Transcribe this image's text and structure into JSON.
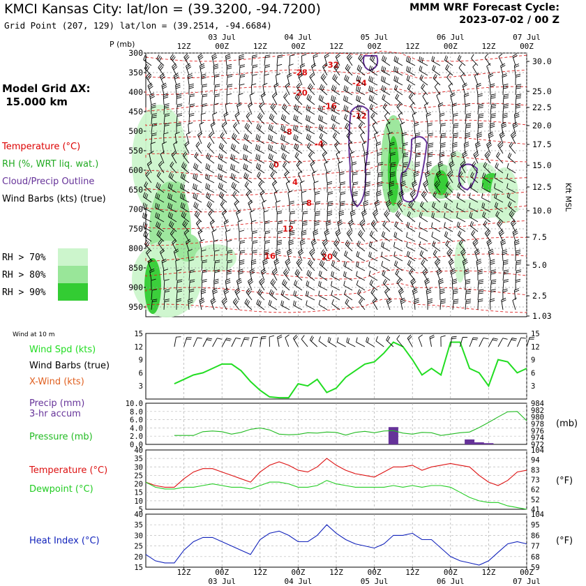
{
  "header": {
    "title": "KMCI Kansas City:  lat/lon = (39.3200, -94.7200)",
    "subtitle": "Grid Point (207, 129) lat/lon = (39.2514, -94.6684)",
    "cycle_line1": "MMM WRF Forecast Cycle:",
    "cycle_line2": "2023-07-02 / 00  Z",
    "model_grid": "Model Grid ΔX:\n 15.000 km"
  },
  "legend": {
    "temperature": "Temperature (°C)",
    "rh": "RH (%, WRT liq. wat.)",
    "cloud": "Cloud/Precip Outline",
    "barbs": "Wind Barbs (kts) (true)",
    "rh70": "RH > 70%",
    "rh80": "RH > 80%",
    "rh90": "RH > 90%",
    "colors": {
      "temperature": "#dd0000",
      "rh": "#22aa22",
      "cloud": "#663399",
      "rh70": "#ccf5cc",
      "rh80": "#99e699",
      "rh90": "#33cc33"
    }
  },
  "time_axis": {
    "top_hours": [
      "12Z",
      "00Z",
      "12Z",
      "00Z",
      "12Z",
      "00Z",
      "12Z",
      "00Z",
      "12Z",
      "00Z"
    ],
    "top_dates": [
      "03 Jul",
      "04 Jul",
      "05 Jul",
      "06 Jul",
      "07 Jul"
    ],
    "bottom_hours": [
      "12Z",
      "00Z",
      "12Z",
      "00Z",
      "12Z",
      "00Z",
      "12Z",
      "00Z",
      "12Z",
      "00Z"
    ],
    "bottom_dates": [
      "03 Jul",
      "04 Jul",
      "05 Jul",
      "06 Jul",
      "07 Jul"
    ]
  },
  "sounding": {
    "p_header": "P (mb)",
    "pressure_levels": [
      "300",
      "350",
      "400",
      "450",
      "500",
      "550",
      "600",
      "650",
      "700",
      "750",
      "800",
      "850",
      "900",
      "950"
    ],
    "kft_ticks": [
      "30.0",
      "25.0",
      "22.5",
      "20.0",
      "17.5",
      "15.0",
      "12.5",
      "10.0",
      "7.5",
      "5.0",
      "2.5",
      "1.03"
    ],
    "kft_label": "Kft MSL",
    "temp_labels": [
      "-32",
      "-28",
      "-24",
      "-20",
      "-16",
      "-12",
      "-8",
      "-4",
      "0",
      "4",
      "8",
      "12",
      "16",
      "20"
    ]
  },
  "panel_wind": {
    "title": "Wind at 10 m",
    "label_spd": "Wind Spd (kts)",
    "label_barbs": "Wind Barbs (true)",
    "label_xwind": "X-Wind (kts)",
    "yticks": [
      "15",
      "12",
      "9",
      "6",
      "3"
    ],
    "colors": {
      "spd": "#22dd22",
      "xwind": "#e06020"
    }
  },
  "panel_precip": {
    "label_precip": "Precip (mm)",
    "label_accum": "3-hr accum",
    "label_pressure": "Pressure (mb)",
    "left_ticks": [
      "10.0",
      "8.0",
      "6.0",
      "4.0",
      "2.0",
      "0.0"
    ],
    "right_ticks": [
      "984",
      "982",
      "980",
      "978",
      "976",
      "974",
      "972"
    ],
    "unit": "(mb)",
    "colors": {
      "precip": "#663399",
      "pressure": "#22bb22"
    }
  },
  "panel_temp": {
    "label_temp": "Temperature (°C)",
    "label_dew": "Dewpoint (°C)",
    "left_ticks": [
      "40",
      "35",
      "30",
      "25",
      "20",
      "15",
      "10",
      "5"
    ],
    "right_ticks": [
      "104",
      "94",
      "83",
      "73",
      "62",
      "52",
      "41"
    ],
    "unit": "(°F)",
    "colors": {
      "temp": "#dd1111",
      "dew": "#22cc22"
    }
  },
  "panel_heat": {
    "label_heat": "Heat Index (°C)",
    "left_ticks": [
      "40",
      "35",
      "30",
      "25",
      "20",
      "15"
    ],
    "right_ticks": [
      "104",
      "95",
      "86",
      "77",
      "68",
      "59"
    ],
    "unit": "(°F)",
    "colors": {
      "heat": "#1122bb"
    }
  },
  "chart_data": [
    {
      "type": "line",
      "name": "10 m wind",
      "x_hours": [
        9,
        12,
        15,
        18,
        21,
        24,
        27,
        30,
        33,
        36,
        39,
        42,
        45,
        48,
        51,
        54,
        57,
        60,
        63,
        66,
        69,
        72,
        75,
        78,
        81,
        84,
        87,
        90,
        93,
        96,
        99,
        102,
        105,
        108,
        111,
        114,
        117,
        120
      ],
      "series": [
        {
          "name": "Wind Spd (kts)",
          "values": [
            3.5,
            4.5,
            5.5,
            6,
            7,
            8,
            8,
            6.5,
            4,
            2,
            0.5,
            0.3,
            0.3,
            3.5,
            3,
            4.5,
            1.5,
            2.5,
            5,
            6.5,
            8,
            8.5,
            10.5,
            13,
            12,
            9,
            5.5,
            7,
            5.5,
            13,
            13,
            7,
            6,
            3,
            9,
            8.5,
            6,
            7
          ]
        }
      ],
      "ylim": [
        0,
        15
      ]
    },
    {
      "type": "bar",
      "name": "3-hr precip",
      "x_hours": [
        78,
        102,
        105,
        108
      ],
      "values": [
        4.2,
        1.2,
        0.5,
        0.3
      ],
      "ylim": [
        0,
        10
      ]
    },
    {
      "type": "line",
      "name": "Pressure (mb)",
      "x_hours": [
        9,
        12,
        15,
        18,
        21,
        24,
        27,
        30,
        33,
        36,
        39,
        42,
        45,
        48,
        51,
        54,
        57,
        60,
        63,
        66,
        69,
        72,
        75,
        78,
        81,
        84,
        87,
        90,
        93,
        96,
        99,
        102,
        105,
        108,
        111,
        114,
        117,
        120
      ],
      "values": [
        974.6,
        974.6,
        974.6,
        975.7,
        975.9,
        975.7,
        975.0,
        975.5,
        976.4,
        976.8,
        976.2,
        975.0,
        974.8,
        974.9,
        975.4,
        975.3,
        975.6,
        975.5,
        974.7,
        975.5,
        975.8,
        975.4,
        975.9,
        976.0,
        975.3,
        975.0,
        975.5,
        975.4,
        974.6,
        975.0,
        975.4,
        975.6,
        976.9,
        978.4,
        980.0,
        981.5,
        981.6,
        978.9
      ],
      "ylim": [
        972,
        984
      ]
    },
    {
      "type": "line",
      "name": "Temperature / Dewpoint",
      "x_hours": [
        0,
        3,
        6,
        9,
        12,
        15,
        18,
        21,
        24,
        27,
        30,
        33,
        36,
        39,
        42,
        45,
        48,
        51,
        54,
        57,
        60,
        63,
        66,
        69,
        72,
        75,
        78,
        81,
        84,
        87,
        90,
        93,
        96,
        99,
        102,
        105,
        108,
        111,
        114,
        117,
        120
      ],
      "series": [
        {
          "name": "Temperature (°C)",
          "values": [
            21,
            19,
            18,
            18,
            23,
            27,
            29,
            29,
            27,
            25,
            23,
            21,
            27,
            31,
            33,
            31,
            28,
            27,
            30,
            35,
            31,
            28,
            26,
            25,
            24,
            27,
            30,
            30,
            31,
            28,
            30,
            31,
            32,
            31,
            30,
            25,
            21,
            19,
            22,
            27,
            28
          ]
        },
        {
          "name": "Dewpoint (°C)",
          "values": [
            21,
            18,
            17,
            17,
            18,
            18,
            19,
            20,
            19,
            18,
            18,
            17,
            19,
            21,
            21,
            20,
            18,
            18,
            19,
            22,
            20,
            19,
            18,
            18,
            18,
            18,
            19,
            18,
            19,
            18,
            19,
            19,
            18,
            15,
            12,
            10,
            9,
            9,
            7,
            6,
            5
          ]
        }
      ],
      "ylim": [
        5,
        40
      ]
    },
    {
      "type": "line",
      "name": "Heat Index (°C)",
      "x_hours": [
        0,
        3,
        6,
        9,
        12,
        15,
        18,
        21,
        24,
        27,
        30,
        33,
        36,
        39,
        42,
        45,
        48,
        51,
        54,
        57,
        60,
        63,
        66,
        69,
        72,
        75,
        78,
        81,
        84,
        87,
        90,
        93,
        96,
        99,
        102,
        105,
        108,
        111,
        114,
        117,
        120
      ],
      "values": [
        21,
        18,
        17,
        17,
        23,
        27,
        29,
        29,
        27,
        25,
        23,
        21,
        28,
        31,
        32,
        30,
        27,
        27,
        30,
        35,
        31,
        28,
        26,
        25,
        24,
        26,
        30,
        30,
        31,
        28,
        28,
        24,
        20,
        18,
        17,
        16,
        18,
        22,
        26,
        27,
        26
      ],
      "ylim": [
        15,
        40
      ]
    }
  ]
}
